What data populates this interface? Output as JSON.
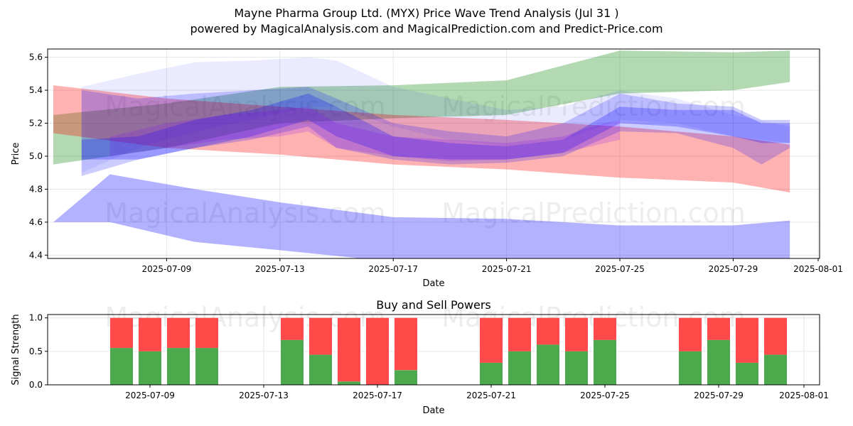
{
  "title_line1": "Mayne Pharma Group Ltd. (MYX) Price Wave Trend Analysis (Jul 31 )",
  "title_line2": "powered by MagicalAnalysis.com and MagicalPrediction.com and Predict-Price.com",
  "watermarks": [
    "MagicalAnalysis.com",
    "MagicalPrediction.com"
  ],
  "chart_data": [
    {
      "type": "area",
      "xlabel": "Date",
      "ylabel": "Price",
      "ylim": [
        4.38,
        5.65
      ],
      "xlim": [
        "2025-07-05",
        "2025-08-01"
      ],
      "xticks": [
        "2025-07-09",
        "2025-07-13",
        "2025-07-17",
        "2025-07-21",
        "2025-07-25",
        "2025-07-29",
        "2025-08-01"
      ],
      "yticks": [
        "4.4",
        "4.6",
        "4.8",
        "5.0",
        "5.2",
        "5.4",
        "5.6"
      ],
      "grid": true,
      "bands": [
        {
          "color": "#008000",
          "opacity": 0.3,
          "x": [
            "2025-07-05",
            "2025-07-09",
            "2025-07-13",
            "2025-07-17",
            "2025-07-21",
            "2025-07-25",
            "2025-07-29",
            "2025-07-31"
          ],
          "upper": [
            5.25,
            5.32,
            5.42,
            5.43,
            5.46,
            5.64,
            5.63,
            5.64
          ],
          "lower": [
            4.95,
            5.05,
            5.2,
            5.23,
            5.25,
            5.38,
            5.4,
            5.45
          ]
        },
        {
          "color": "#ff0000",
          "opacity": 0.3,
          "x": [
            "2025-07-05",
            "2025-07-09",
            "2025-07-13",
            "2025-07-17",
            "2025-07-21",
            "2025-07-25",
            "2025-07-29",
            "2025-07-31"
          ],
          "upper": [
            5.43,
            5.35,
            5.3,
            5.25,
            5.22,
            5.18,
            5.12,
            5.07
          ],
          "lower": [
            5.14,
            5.05,
            5.01,
            4.95,
            4.92,
            4.87,
            4.84,
            4.78
          ]
        },
        {
          "color": "#0000ff",
          "opacity": 0.3,
          "x": [
            "2025-07-05",
            "2025-07-07",
            "2025-07-10",
            "2025-07-13",
            "2025-07-17",
            "2025-07-21",
            "2025-07-25",
            "2025-07-29",
            "2025-07-31"
          ],
          "upper": [
            4.6,
            4.89,
            4.8,
            4.72,
            4.63,
            4.62,
            4.58,
            4.58,
            4.61
          ],
          "lower": [
            4.6,
            4.6,
            4.48,
            4.43,
            4.36,
            4.33,
            4.3,
            4.3,
            4.36
          ]
        },
        {
          "color": "#0000ff",
          "opacity": 0.08,
          "x": [
            "2025-07-06",
            "2025-07-08",
            "2025-07-10",
            "2025-07-12",
            "2025-07-14",
            "2025-07-15",
            "2025-07-17",
            "2025-07-19",
            "2025-07-21",
            "2025-07-23",
            "2025-07-25",
            "2025-07-27",
            "2025-07-29",
            "2025-07-31"
          ],
          "upper": [
            5.42,
            5.5,
            5.57,
            5.58,
            5.6,
            5.58,
            5.42,
            5.35,
            5.28,
            5.3,
            5.4,
            5.35,
            5.25,
            5.18
          ],
          "lower": [
            4.9,
            5.05,
            5.15,
            5.22,
            5.3,
            5.3,
            5.18,
            5.1,
            5.06,
            5.1,
            5.22,
            5.2,
            5.12,
            5.08
          ]
        },
        {
          "color": "#0000ff",
          "opacity": 0.2,
          "x": [
            "2025-07-06",
            "2025-07-08",
            "2025-07-10",
            "2025-07-12",
            "2025-07-14",
            "2025-07-15",
            "2025-07-17",
            "2025-07-19",
            "2025-07-21",
            "2025-07-23",
            "2025-07-25",
            "2025-07-27",
            "2025-07-29",
            "2025-07-30",
            "2025-07-31"
          ],
          "upper": [
            5.4,
            5.35,
            5.38,
            5.4,
            5.42,
            5.35,
            5.2,
            5.15,
            5.12,
            5.2,
            5.38,
            5.32,
            5.3,
            5.22,
            5.22
          ],
          "lower": [
            4.88,
            4.98,
            5.05,
            5.1,
            5.18,
            5.05,
            4.98,
            4.95,
            4.96,
            5.0,
            5.15,
            5.14,
            5.05,
            4.95,
            5.05
          ]
        },
        {
          "color": "#0000ff",
          "opacity": 0.25,
          "x": [
            "2025-07-06",
            "2025-07-08",
            "2025-07-10",
            "2025-07-12",
            "2025-07-14",
            "2025-07-15",
            "2025-07-17",
            "2025-07-19",
            "2025-07-21",
            "2025-07-23",
            "2025-07-25",
            "2025-07-27",
            "2025-07-29",
            "2025-07-30",
            "2025-07-31"
          ],
          "upper": [
            5.1,
            5.12,
            5.22,
            5.28,
            5.38,
            5.3,
            5.12,
            5.08,
            5.06,
            5.1,
            5.3,
            5.28,
            5.28,
            5.2,
            5.2
          ],
          "lower": [
            4.98,
            4.98,
            5.05,
            5.12,
            5.22,
            5.12,
            5.0,
            4.98,
            4.98,
            5.02,
            5.2,
            5.18,
            5.12,
            5.08,
            5.08
          ]
        },
        {
          "color": "#8000ff",
          "opacity": 0.18,
          "x": [
            "2025-07-07",
            "2025-07-09",
            "2025-07-11",
            "2025-07-13",
            "2025-07-14",
            "2025-07-15",
            "2025-07-17",
            "2025-07-19",
            "2025-07-21",
            "2025-07-23",
            "2025-07-24",
            "2025-07-25"
          ],
          "upper": [
            5.12,
            5.2,
            5.25,
            5.28,
            5.3,
            5.2,
            5.12,
            5.1,
            5.08,
            5.12,
            5.18,
            5.22
          ],
          "lower": [
            5.0,
            5.05,
            5.1,
            5.12,
            5.15,
            5.05,
            5.0,
            4.97,
            4.98,
            5.02,
            5.06,
            5.1
          ]
        }
      ]
    },
    {
      "type": "bar",
      "title": "Buy and Sell Powers",
      "xlabel": "Date",
      "ylabel": "Signal Strength",
      "ylim": [
        0,
        1.05
      ],
      "yticks": [
        "0.0",
        "0.5",
        "1.0"
      ],
      "xticks": [
        "2025-07-09",
        "2025-07-13",
        "2025-07-17",
        "2025-07-21",
        "2025-07-25",
        "2025-07-29",
        "2025-08-01"
      ],
      "colors": {
        "buy": "#4caa4c",
        "sell": "#ff4a4a"
      },
      "categories": [
        "2025-07-08",
        "2025-07-09",
        "2025-07-10",
        "2025-07-11",
        "2025-07-14",
        "2025-07-15",
        "2025-07-16",
        "2025-07-17",
        "2025-07-18",
        "2025-07-21",
        "2025-07-22",
        "2025-07-23",
        "2025-07-24",
        "2025-07-25",
        "2025-07-28",
        "2025-07-29",
        "2025-07-30",
        "2025-07-31"
      ],
      "series": [
        {
          "name": "buy",
          "values": [
            0.55,
            0.5,
            0.55,
            0.55,
            0.67,
            0.45,
            0.05,
            0.0,
            0.22,
            0.33,
            0.5,
            0.6,
            0.5,
            0.67,
            0.5,
            0.67,
            0.33,
            0.45
          ]
        },
        {
          "name": "sell",
          "values": [
            0.45,
            0.5,
            0.45,
            0.45,
            0.33,
            0.55,
            0.95,
            1.0,
            0.78,
            0.67,
            0.5,
            0.4,
            0.5,
            0.33,
            0.5,
            0.33,
            0.67,
            0.55
          ]
        }
      ]
    }
  ]
}
